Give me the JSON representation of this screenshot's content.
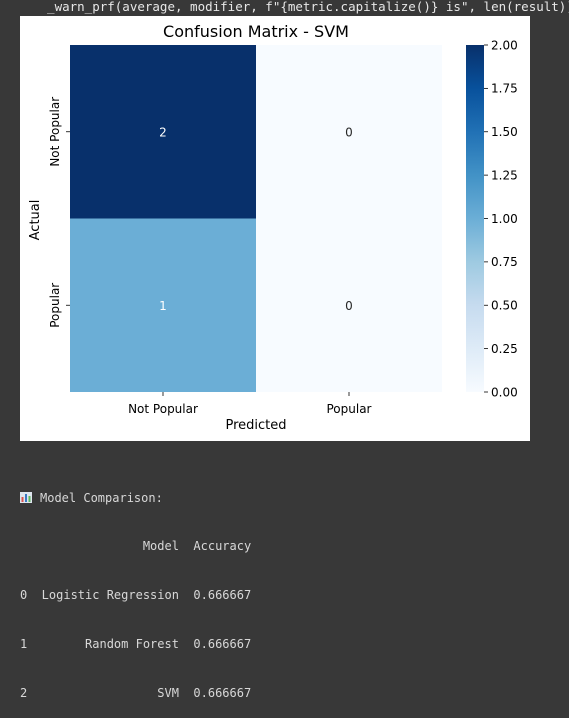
{
  "stderr": {
    "warning_text": "  _warn_prf(average, modifier, f\"{metric.capitalize()} is\", len(result))"
  },
  "chart_data": {
    "type": "heatmap",
    "title": "Confusion Matrix - SVM",
    "xlabel": "Predicted",
    "ylabel": "Actual",
    "x_categories": [
      "Not Popular",
      "Popular"
    ],
    "y_categories": [
      "Not Popular",
      "Popular"
    ],
    "values": [
      [
        2,
        0
      ],
      [
        1,
        0
      ]
    ],
    "colormap": "Blues",
    "colorbar": {
      "range": [
        0.0,
        2.0
      ],
      "ticks": [
        "0.00",
        "0.25",
        "0.50",
        "0.75",
        "1.00",
        "1.25",
        "1.50",
        "1.75",
        "2.00"
      ]
    }
  },
  "output": {
    "icon": "bar-chart-icon",
    "heading": "Model Comparison:",
    "table": {
      "header_line": "                 Model  Accuracy",
      "rows": [
        "0  Logistic Regression  0.666667",
        "1        Random Forest  0.666667",
        "2                  SVM  0.666667"
      ]
    }
  }
}
